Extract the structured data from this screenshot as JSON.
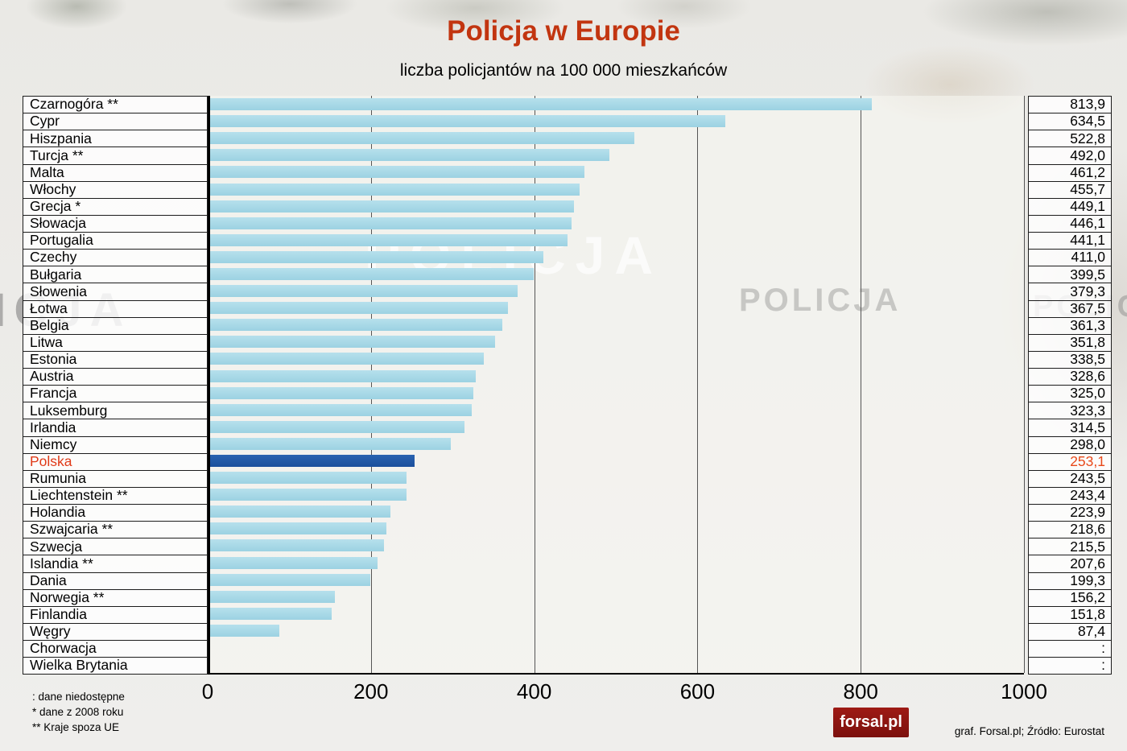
{
  "title": "Policja w Europie",
  "subtitle": "liczba policjantów na 100 000 mieszkańców",
  "watermark_text": "POLICJA",
  "chart_data": {
    "type": "bar",
    "orientation": "horizontal",
    "title": "Policja w Europie",
    "subtitle": "liczba policjantów na 100 000 mieszkańców",
    "xlim": [
      0,
      1000
    ],
    "x_ticks": [
      0,
      200,
      400,
      600,
      800,
      1000
    ],
    "grid": true,
    "bar_color": "#a7d8e7",
    "highlight_color": "#1d57a5",
    "highlight_text_color": "#e03a18",
    "rows": [
      {
        "name": "Czarnogóra **",
        "value": 813.9,
        "label": "813,9"
      },
      {
        "name": "Cypr",
        "value": 634.5,
        "label": "634,5"
      },
      {
        "name": "Hiszpania",
        "value": 522.8,
        "label": "522,8"
      },
      {
        "name": "Turcja **",
        "value": 492.0,
        "label": "492,0"
      },
      {
        "name": "Malta",
        "value": 461.2,
        "label": "461,2"
      },
      {
        "name": "Włochy",
        "value": 455.7,
        "label": "455,7"
      },
      {
        "name": "Grecja *",
        "value": 449.1,
        "label": "449,1"
      },
      {
        "name": "Słowacja",
        "value": 446.1,
        "label": "446,1"
      },
      {
        "name": "Portugalia",
        "value": 441.1,
        "label": "441,1"
      },
      {
        "name": "Czechy",
        "value": 411.0,
        "label": "411,0"
      },
      {
        "name": "Bułgaria",
        "value": 399.5,
        "label": "399,5"
      },
      {
        "name": "Słowenia",
        "value": 379.3,
        "label": "379,3"
      },
      {
        "name": "Łotwa",
        "value": 367.5,
        "label": "367,5"
      },
      {
        "name": "Belgia",
        "value": 361.3,
        "label": "361,3"
      },
      {
        "name": "Litwa",
        "value": 351.8,
        "label": "351,8"
      },
      {
        "name": "Estonia",
        "value": 338.5,
        "label": "338,5"
      },
      {
        "name": "Austria",
        "value": 328.6,
        "label": "328,6"
      },
      {
        "name": "Francja",
        "value": 325.0,
        "label": "325,0"
      },
      {
        "name": "Luksemburg",
        "value": 323.3,
        "label": "323,3"
      },
      {
        "name": "Irlandia",
        "value": 314.5,
        "label": "314,5"
      },
      {
        "name": "Niemcy",
        "value": 298.0,
        "label": "298,0"
      },
      {
        "name": "Polska",
        "value": 253.1,
        "label": "253,1",
        "highlight": true
      },
      {
        "name": "Rumunia",
        "value": 243.5,
        "label": "243,5"
      },
      {
        "name": "Liechtenstein **",
        "value": 243.4,
        "label": "243,4"
      },
      {
        "name": "Holandia",
        "value": 223.9,
        "label": "223,9"
      },
      {
        "name": "Szwajcaria **",
        "value": 218.6,
        "label": "218,6"
      },
      {
        "name": "Szwecja",
        "value": 215.5,
        "label": "215,5"
      },
      {
        "name": "Islandia **",
        "value": 207.6,
        "label": "207,6"
      },
      {
        "name": "Dania",
        "value": 199.3,
        "label": "199,3"
      },
      {
        "name": "Norwegia **",
        "value": 156.2,
        "label": "156,2"
      },
      {
        "name": "Finlandia",
        "value": 151.8,
        "label": "151,8"
      },
      {
        "name": "Węgry",
        "value": 87.4,
        "label": "87,4"
      },
      {
        "name": "Chorwacja",
        "value": null,
        "label": ":"
      },
      {
        "name": "Wielka Brytania",
        "value": null,
        "label": ":"
      }
    ]
  },
  "footnotes": [
    ": dane niedostępne",
    "* dane z 2008 roku",
    "** Kraje spoza UE"
  ],
  "credits": "graf. Forsal.pl;  Źródło: Eurostat",
  "logo_text": "forsal.pl"
}
